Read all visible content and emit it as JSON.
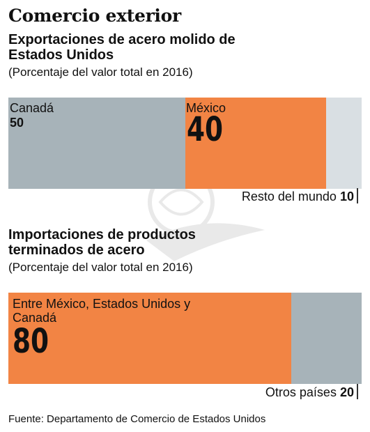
{
  "header": {
    "title": "Comercio exterior"
  },
  "chart_data": [
    {
      "type": "bar",
      "orientation": "horizontal-stacked",
      "title": "Exportaciones de acero molido de Estados Unidos",
      "subtitle": "(Porcentaje del valor total en 2016)",
      "segments": [
        {
          "label": "Canadá",
          "value": 50,
          "value_label": "50",
          "color": "#a7b3b9"
        },
        {
          "label": "México",
          "value": 40,
          "value_label": "40",
          "color": "#f28444"
        },
        {
          "label": "Resto del mundo",
          "value": 10,
          "value_label": "10",
          "color": "#d9dfe3"
        }
      ],
      "xlim": [
        0,
        100
      ]
    },
    {
      "type": "bar",
      "orientation": "horizontal-stacked",
      "title": "Importaciones de productos terminados de acero",
      "subtitle": "(Porcentaje del valor total en 2016)",
      "segments": [
        {
          "label": "Entre México, Estados Unidos y Canadá",
          "value": 80,
          "value_label": "80",
          "color": "#f28444"
        },
        {
          "label": "Otros países",
          "value": 20,
          "value_label": "20",
          "color": "#a7b3b9"
        }
      ],
      "xlim": [
        0,
        100
      ]
    }
  ],
  "footer": {
    "source": "Fuente: Departamento de Comercio de Estados Unidos"
  }
}
